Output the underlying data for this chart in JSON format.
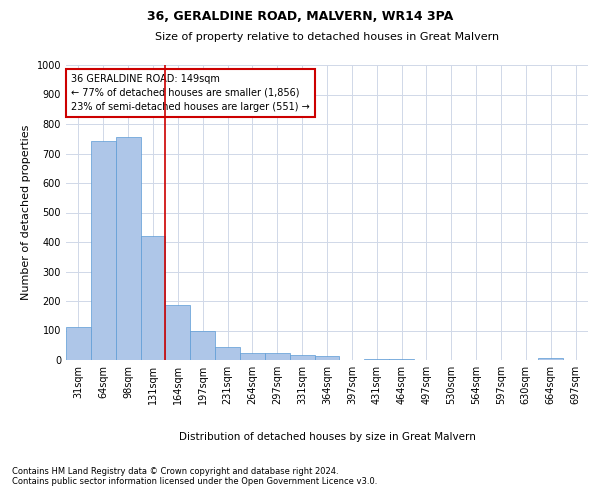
{
  "title": "36, GERALDINE ROAD, MALVERN, WR14 3PA",
  "subtitle": "Size of property relative to detached houses in Great Malvern",
  "xlabel": "Distribution of detached houses by size in Great Malvern",
  "ylabel": "Number of detached properties",
  "footnote1": "Contains HM Land Registry data © Crown copyright and database right 2024.",
  "footnote2": "Contains public sector information licensed under the Open Government Licence v3.0.",
  "bar_labels": [
    "31sqm",
    "64sqm",
    "98sqm",
    "131sqm",
    "164sqm",
    "197sqm",
    "231sqm",
    "264sqm",
    "297sqm",
    "331sqm",
    "364sqm",
    "397sqm",
    "431sqm",
    "464sqm",
    "497sqm",
    "530sqm",
    "564sqm",
    "597sqm",
    "630sqm",
    "664sqm",
    "697sqm"
  ],
  "bar_values": [
    113,
    743,
    755,
    420,
    185,
    98,
    45,
    25,
    25,
    18,
    15,
    0,
    5,
    2,
    0,
    0,
    0,
    0,
    0,
    8,
    0
  ],
  "bar_color": "#aec6e8",
  "bar_edge_color": "#5b9bd5",
  "ylim": [
    0,
    1000
  ],
  "yticks": [
    0,
    100,
    200,
    300,
    400,
    500,
    600,
    700,
    800,
    900,
    1000
  ],
  "property_line_x": 3.5,
  "property_line_color": "#cc0000",
  "annotation_line1": "36 GERALDINE ROAD: 149sqm",
  "annotation_line2": "← 77% of detached houses are smaller (1,856)",
  "annotation_line3": "23% of semi-detached houses are larger (551) →",
  "annotation_box_color": "#cc0000",
  "background_color": "#ffffff",
  "grid_color": "#d0d8e8",
  "title_fontsize": 9,
  "subtitle_fontsize": 8,
  "ylabel_fontsize": 8,
  "tick_fontsize": 7,
  "annot_fontsize": 7,
  "xlabel_fontsize": 7.5,
  "footnote_fontsize": 6
}
